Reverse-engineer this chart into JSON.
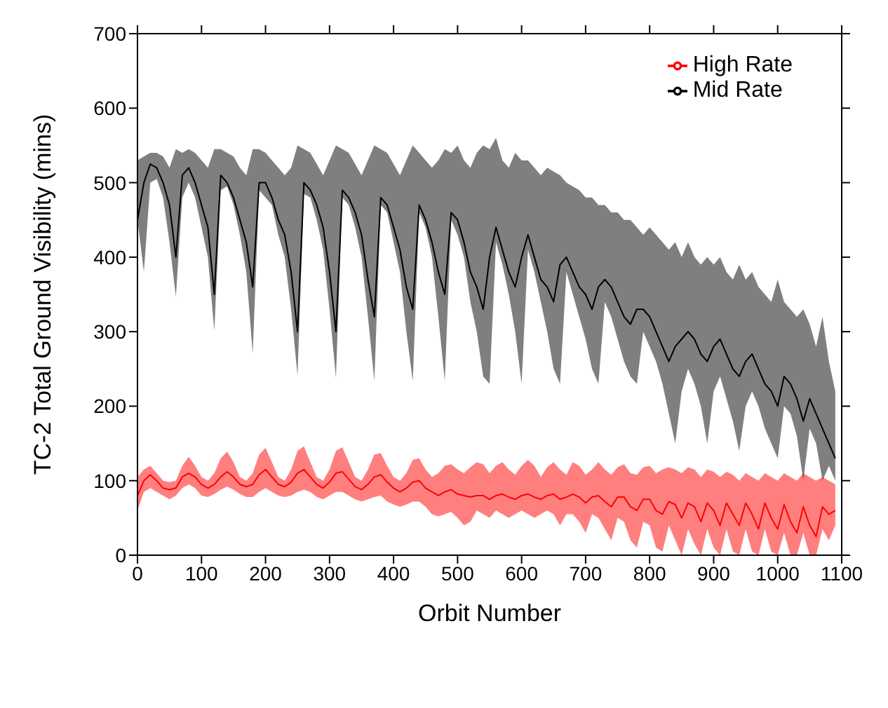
{
  "chart_data": {
    "type": "line",
    "xlabel": "Orbit Number",
    "ylabel": "TC-2 Total Ground Visibility (mins)",
    "x": [
      0,
      10,
      20,
      30,
      40,
      50,
      60,
      70,
      80,
      90,
      100,
      110,
      120,
      130,
      140,
      150,
      160,
      170,
      180,
      190,
      200,
      210,
      220,
      230,
      240,
      250,
      260,
      270,
      280,
      290,
      300,
      310,
      320,
      330,
      340,
      350,
      360,
      370,
      380,
      390,
      400,
      410,
      420,
      430,
      440,
      450,
      460,
      470,
      480,
      490,
      500,
      510,
      520,
      530,
      540,
      550,
      560,
      570,
      580,
      590,
      600,
      610,
      620,
      630,
      640,
      650,
      660,
      670,
      680,
      690,
      700,
      710,
      720,
      730,
      740,
      750,
      760,
      770,
      780,
      790,
      800,
      810,
      820,
      830,
      840,
      850,
      860,
      870,
      880,
      890,
      900,
      910,
      920,
      930,
      940,
      950,
      960,
      970,
      980,
      990,
      1000,
      1010,
      1020,
      1030,
      1040,
      1050,
      1060,
      1070,
      1080,
      1090
    ],
    "xlim": [
      0,
      1100
    ],
    "xticks": [
      0,
      100,
      200,
      300,
      400,
      500,
      600,
      700,
      800,
      900,
      1000,
      1100
    ],
    "ylim": [
      0,
      700
    ],
    "yticks": [
      0,
      100,
      200,
      300,
      400,
      500,
      600,
      700
    ],
    "legend": "top right",
    "grid": false,
    "marker": "none",
    "line_style": "solid",
    "series": [
      {
        "name": "Mid Rate",
        "color": "#000000",
        "values": [
          450,
          500,
          525,
          520,
          500,
          470,
          400,
          510,
          520,
          500,
          470,
          440,
          350,
          510,
          500,
          480,
          450,
          420,
          360,
          500,
          500,
          480,
          450,
          430,
          380,
          300,
          500,
          490,
          470,
          440,
          380,
          300,
          490,
          480,
          460,
          430,
          370,
          320,
          480,
          470,
          440,
          410,
          360,
          330,
          470,
          450,
          420,
          380,
          350,
          460,
          450,
          420,
          380,
          360,
          330,
          400,
          440,
          410,
          380,
          360,
          400,
          430,
          400,
          370,
          360,
          340,
          390,
          400,
          380,
          360,
          350,
          330,
          360,
          370,
          360,
          340,
          320,
          310,
          330,
          330,
          320,
          300,
          280,
          260,
          280,
          290,
          300,
          290,
          270,
          260,
          280,
          290,
          270,
          250,
          240,
          260,
          270,
          250,
          230,
          220,
          200,
          240,
          230,
          210,
          180,
          210,
          190,
          170,
          150,
          130
        ],
        "lower": [
          450,
          380,
          500,
          505,
          480,
          420,
          347,
          480,
          500,
          480,
          440,
          400,
          301,
          490,
          495,
          470,
          430,
          380,
          271,
          490,
          480,
          470,
          430,
          400,
          330,
          241,
          485,
          480,
          450,
          410,
          330,
          238,
          480,
          470,
          440,
          400,
          320,
          234,
          470,
          460,
          420,
          380,
          300,
          234,
          460,
          440,
          400,
          320,
          234,
          450,
          430,
          400,
          340,
          300,
          240,
          230,
          420,
          390,
          350,
          300,
          230,
          410,
          380,
          340,
          300,
          250,
          230,
          380,
          350,
          320,
          290,
          250,
          230,
          340,
          320,
          290,
          260,
          240,
          230,
          300,
          280,
          260,
          230,
          190,
          150,
          220,
          250,
          230,
          200,
          150,
          220,
          240,
          210,
          180,
          140,
          200,
          220,
          200,
          170,
          150,
          130,
          200,
          190,
          160,
          100,
          170,
          150,
          100,
          120,
          100
        ],
        "upper": [
          530,
          535,
          540,
          540,
          535,
          520,
          545,
          540,
          545,
          540,
          530,
          520,
          545,
          545,
          540,
          535,
          520,
          510,
          545,
          545,
          540,
          530,
          520,
          510,
          520,
          550,
          545,
          540,
          525,
          510,
          530,
          550,
          545,
          540,
          525,
          510,
          530,
          550,
          545,
          540,
          525,
          510,
          530,
          550,
          540,
          530,
          520,
          530,
          545,
          540,
          550,
          530,
          520,
          540,
          550,
          545,
          560,
          530,
          520,
          540,
          530,
          530,
          520,
          510,
          520,
          515,
          510,
          500,
          495,
          490,
          480,
          480,
          470,
          470,
          460,
          460,
          450,
          450,
          440,
          430,
          440,
          430,
          420,
          410,
          420,
          400,
          420,
          400,
          390,
          400,
          390,
          400,
          380,
          370,
          390,
          370,
          380,
          360,
          350,
          340,
          370,
          340,
          330,
          320,
          330,
          310,
          280,
          320,
          260,
          220
        ]
      },
      {
        "name": "High Rate",
        "color": "#ff0000",
        "values": [
          80,
          100,
          108,
          100,
          90,
          88,
          90,
          105,
          110,
          105,
          95,
          90,
          95,
          105,
          112,
          105,
          95,
          92,
          95,
          108,
          115,
          105,
          95,
          92,
          98,
          110,
          115,
          105,
          95,
          90,
          98,
          110,
          112,
          102,
          92,
          88,
          95,
          105,
          108,
          98,
          90,
          85,
          90,
          98,
          100,
          90,
          85,
          80,
          85,
          88,
          82,
          80,
          78,
          80,
          80,
          75,
          80,
          82,
          78,
          75,
          80,
          82,
          78,
          75,
          80,
          82,
          75,
          78,
          82,
          78,
          70,
          78,
          80,
          72,
          65,
          78,
          78,
          65,
          60,
          75,
          75,
          60,
          55,
          72,
          68,
          50,
          70,
          65,
          45,
          70,
          60,
          40,
          70,
          55,
          40,
          70,
          55,
          35,
          70,
          50,
          35,
          68,
          45,
          30,
          65,
          40,
          25,
          65,
          55,
          60
        ],
        "lower": [
          60,
          85,
          90,
          85,
          80,
          75,
          80,
          90,
          95,
          90,
          80,
          78,
          82,
          88,
          92,
          88,
          82,
          78,
          78,
          85,
          90,
          85,
          80,
          78,
          80,
          85,
          88,
          85,
          78,
          75,
          80,
          85,
          85,
          80,
          75,
          72,
          75,
          78,
          80,
          72,
          68,
          65,
          68,
          72,
          72,
          65,
          55,
          52,
          55,
          58,
          50,
          40,
          45,
          60,
          55,
          50,
          60,
          55,
          50,
          55,
          60,
          55,
          50,
          55,
          60,
          55,
          40,
          55,
          55,
          45,
          30,
          55,
          50,
          35,
          20,
          50,
          45,
          20,
          10,
          45,
          40,
          10,
          5,
          40,
          20,
          0,
          35,
          15,
          0,
          35,
          10,
          0,
          35,
          5,
          0,
          35,
          5,
          0,
          35,
          5,
          0,
          30,
          0,
          0,
          30,
          0,
          0,
          35,
          20,
          40
        ],
        "upper": [
          105,
          115,
          120,
          110,
          100,
          98,
          100,
          120,
          132,
          120,
          105,
          100,
          110,
          130,
          139,
          125,
          105,
          100,
          110,
          135,
          144,
          125,
          105,
          100,
          115,
          140,
          146,
          125,
          105,
          100,
          115,
          140,
          145,
          125,
          105,
          100,
          115,
          135,
          137,
          120,
          105,
          100,
          110,
          128,
          130,
          115,
          105,
          110,
          120,
          122,
          115,
          110,
          118,
          125,
          122,
          110,
          120,
          125,
          115,
          108,
          120,
          128,
          120,
          105,
          118,
          125,
          115,
          108,
          125,
          120,
          108,
          115,
          125,
          115,
          108,
          118,
          122,
          110,
          108,
          118,
          120,
          110,
          115,
          118,
          115,
          110,
          118,
          115,
          105,
          115,
          112,
          105,
          112,
          108,
          100,
          110,
          105,
          100,
          110,
          105,
          100,
          110,
          105,
          100,
          110,
          105,
          100,
          105,
          100,
          95
        ]
      }
    ]
  }
}
